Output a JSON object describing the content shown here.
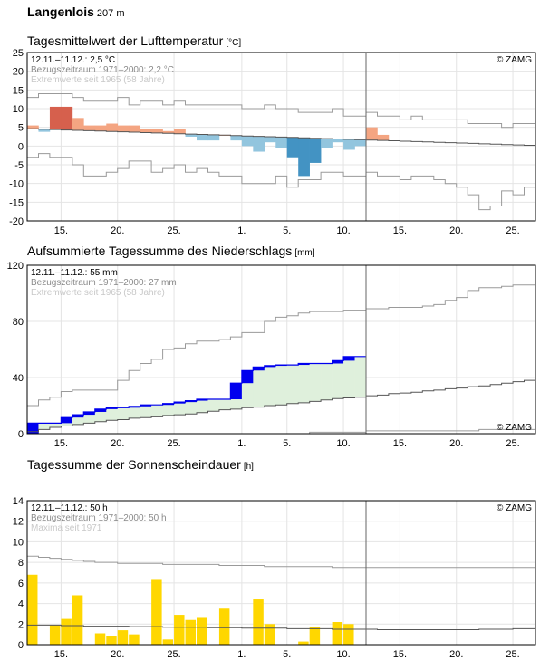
{
  "station": {
    "name": "Langenlois",
    "altitude": "207 m"
  },
  "x_tick_labels": [
    "15.",
    "20.",
    "25.",
    "1.",
    "5.",
    "10.",
    "15.",
    "20.",
    "25."
  ],
  "x_tick_days": [
    3,
    8,
    13,
    19,
    23,
    28,
    33,
    38,
    43
  ],
  "today_day": 30,
  "copyright": "© ZAMG",
  "colors": {
    "temp_above": "#f4a582",
    "temp_above_strong": "#d6604d",
    "temp_below": "#92c5de",
    "temp_below_strong": "#4393c3",
    "precip_fill": "#0000ee",
    "precip_ref_fill": "#dff0dc",
    "sun_bar": "#ffd700",
    "extreme_line": "#9a9a9a",
    "ref_line": "#555555"
  },
  "chart_data": [
    {
      "type": "line",
      "title": "Tagesmittelwert der Lufttemperatur",
      "unit": "[°C]",
      "info": [
        "12.11.–11.12.: 2,5 °C",
        "Bezugszeitraum 1971–2000: 2,2 °C",
        "Extremwerte seit 1965 (58 Jahre)"
      ],
      "ylim": [
        -20,
        25
      ],
      "y_ticks": [
        -20,
        -15,
        -10,
        -5,
        0,
        5,
        10,
        15,
        20,
        25
      ],
      "x_days": [
        0,
        45
      ],
      "measured": [
        5.5,
        3.8,
        10.5,
        10.5,
        7.5,
        5.5,
        5.5,
        6,
        5.5,
        5.5,
        4.5,
        4.5,
        4,
        4.5,
        2.5,
        1.5,
        1.5,
        3,
        1.5,
        0,
        -1.5,
        1,
        -0.5,
        -3,
        -8,
        -4.5,
        -0.5,
        1,
        -1,
        0,
        5,
        3
      ],
      "reference": [
        4.6,
        4.5,
        4.4,
        4.3,
        4.2,
        4.1,
        4.0,
        3.9,
        3.8,
        3.7,
        3.6,
        3.5,
        3.4,
        3.3,
        3.2,
        3.1,
        3.0,
        2.9,
        2.8,
        2.7,
        2.6,
        2.5,
        2.4,
        2.3,
        2.2,
        2.1,
        2.0,
        1.9,
        1.8,
        1.7,
        1.6,
        1.5,
        1.4,
        1.3,
        1.2,
        1.1,
        1.0,
        0.9,
        0.8,
        0.7,
        0.6,
        0.5,
        0.4,
        0.3,
        0.2
      ],
      "extreme_max": [
        13,
        14,
        14,
        14,
        13,
        12,
        12,
        12,
        13,
        11,
        12,
        12,
        11,
        12,
        11,
        11,
        11,
        11,
        11,
        10,
        10,
        11,
        10,
        10,
        9,
        9,
        9,
        10,
        8,
        8,
        9,
        8,
        8,
        7,
        8,
        7,
        7,
        7,
        7,
        6,
        6,
        6,
        5,
        6,
        6
      ],
      "extreme_min": [
        -3,
        -2,
        -3,
        -3,
        -5,
        -8,
        -8,
        -7,
        -6,
        -4,
        -4,
        -7,
        -6,
        -5,
        -7,
        -6,
        -7,
        -8,
        -8,
        -10,
        -10,
        -10,
        -8,
        -11,
        -9,
        -9,
        -7,
        -7,
        -8,
        -8,
        -7,
        -8,
        -8,
        -9,
        -8,
        -8,
        -9,
        -10,
        -11,
        -13,
        -17,
        -16,
        -12,
        -13,
        -11
      ]
    },
    {
      "type": "area",
      "title": "Aufsummierte Tagessumme des Niederschlags",
      "unit": "[mm]",
      "info": [
        "12.11.–11.12.: 55 mm",
        "Bezugszeitraum 1971–2000: 27 mm",
        "Extremwerte seit 1965 (58 Jahre)"
      ],
      "ylim": [
        0,
        120
      ],
      "y_ticks": [
        0,
        40,
        80,
        120
      ],
      "measured": [
        7.5,
        7.5,
        7.5,
        11.5,
        13.5,
        15.5,
        17.5,
        18.5,
        18.5,
        19.5,
        20.5,
        20.5,
        21.5,
        22.5,
        23.5,
        24.5,
        24.5,
        24.5,
        36,
        45,
        47.5,
        48.5,
        49,
        49,
        50,
        50,
        50,
        52,
        55,
        55
      ],
      "reference": [
        1.5,
        3,
        4.5,
        5.5,
        6.5,
        7.5,
        8.5,
        9.5,
        10,
        11,
        11.5,
        12,
        13,
        13.5,
        14,
        15,
        16,
        17,
        17.5,
        18.5,
        19,
        20,
        20.5,
        21.5,
        22,
        23,
        24,
        25,
        25.5,
        26,
        27,
        27.5,
        28.5,
        29,
        29.5,
        30.5,
        31,
        32,
        32.5,
        33.5,
        34,
        35,
        36,
        37,
        38
      ],
      "extreme_max": [
        20,
        24,
        26,
        30,
        31,
        31,
        31,
        31,
        38,
        45,
        50,
        53,
        60,
        61,
        64,
        66,
        66,
        67,
        69,
        72,
        72,
        80,
        83,
        84,
        86,
        87,
        87,
        87,
        88,
        88,
        89,
        89,
        90,
        90,
        90,
        91,
        92,
        95,
        97,
        102,
        104,
        104,
        105,
        106,
        106
      ],
      "extreme_min": [
        0,
        0,
        0,
        0,
        0,
        0,
        0,
        0,
        0,
        0,
        0,
        0,
        0,
        0,
        0,
        0,
        0,
        0,
        0,
        0,
        0,
        0,
        0,
        0,
        0,
        1,
        1,
        1,
        1,
        1,
        2,
        2,
        2,
        2,
        2,
        2,
        2,
        2,
        2,
        2,
        3,
        3,
        3,
        3,
        3
      ]
    },
    {
      "type": "bar",
      "title": "Tagessumme der Sonnenscheindauer",
      "unit": "[h]",
      "info": [
        "12.11.–11.12.: 50 h",
        "Bezugszeitraum 1971–2000: 50 h",
        "Maxima seit 1971"
      ],
      "ylim": [
        0,
        14
      ],
      "y_ticks": [
        0,
        2,
        4,
        6,
        8,
        10,
        12,
        14
      ],
      "measured": [
        6.8,
        0,
        1.9,
        2.5,
        4.8,
        0,
        1.1,
        0.8,
        1.4,
        1,
        0,
        6.3,
        0.5,
        2.9,
        2.4,
        2.6,
        0,
        3.5,
        0,
        0,
        4.4,
        2,
        0,
        0,
        0.3,
        1.7,
        0,
        2.2,
        2,
        0
      ],
      "reference": [
        1.9,
        1.9,
        1.9,
        1.85,
        1.85,
        1.8,
        1.8,
        1.8,
        1.8,
        1.75,
        1.75,
        1.75,
        1.7,
        1.7,
        1.7,
        1.7,
        1.65,
        1.65,
        1.65,
        1.6,
        1.6,
        1.6,
        1.6,
        1.55,
        1.55,
        1.55,
        1.55,
        1.5,
        1.5,
        1.5,
        1.5,
        1.45,
        1.45,
        1.45,
        1.45,
        1.45,
        1.45,
        1.45,
        1.45,
        1.45,
        1.5,
        1.5,
        1.5,
        1.55,
        1.55
      ],
      "extreme_max": [
        8.6,
        8.5,
        8.4,
        8.3,
        8.2,
        8.1,
        8.0,
        8.0,
        7.9,
        7.9,
        7.9,
        7.9,
        7.8,
        7.8,
        7.8,
        7.8,
        7.8,
        7.7,
        7.7,
        7.7,
        7.7,
        7.6,
        7.6,
        7.6,
        7.6,
        7.6,
        7.6,
        7.5,
        7.5,
        7.5,
        7.5,
        7.5,
        7.5,
        7.5,
        7.5,
        7.5,
        7.5,
        7.5,
        7.5,
        7.5,
        7.5,
        7.5,
        7.5,
        7.5,
        7.5
      ]
    }
  ]
}
